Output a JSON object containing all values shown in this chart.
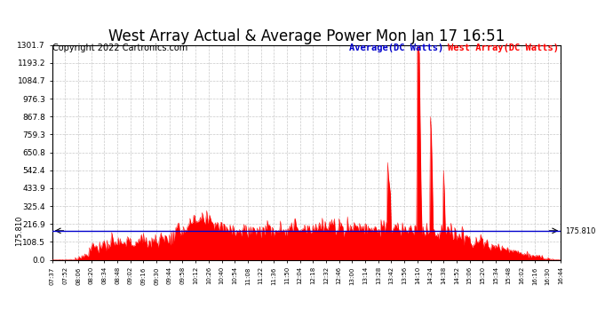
{
  "title": "West Array Actual & Average Power Mon Jan 17 16:51",
  "copyright": "Copyright 2022 Cartronics.com",
  "legend_average": "Average(DC Watts)",
  "legend_west": "West Array(DC Watts)",
  "legend_average_color": "#0000cc",
  "legend_west_color": "#ff0000",
  "y_ticks": [
    0.0,
    108.5,
    216.9,
    325.4,
    433.9,
    542.4,
    650.8,
    759.3,
    867.8,
    976.3,
    1084.7,
    1193.2,
    1301.7
  ],
  "ymin": 0.0,
  "ymax": 1301.7,
  "hline_value": 175.81,
  "hline_label": "175.810",
  "fill_color": "#ff0000",
  "avg_line_color": "#0000cc",
  "background_color": "#ffffff",
  "grid_color": "#bbbbbb",
  "title_fontsize": 12,
  "copyright_fontsize": 7,
  "x_labels": [
    "07:37",
    "07:52",
    "08:06",
    "08:20",
    "08:34",
    "08:48",
    "09:02",
    "09:16",
    "09:30",
    "09:44",
    "09:58",
    "10:12",
    "10:26",
    "10:40",
    "10:54",
    "11:08",
    "11:22",
    "11:36",
    "11:50",
    "12:04",
    "12:18",
    "12:32",
    "12:46",
    "13:00",
    "13:14",
    "13:28",
    "13:42",
    "13:56",
    "14:10",
    "14:24",
    "14:38",
    "14:52",
    "15:06",
    "15:20",
    "15:34",
    "15:48",
    "16:02",
    "16:16",
    "16:30",
    "16:44"
  ],
  "n_points": 547
}
